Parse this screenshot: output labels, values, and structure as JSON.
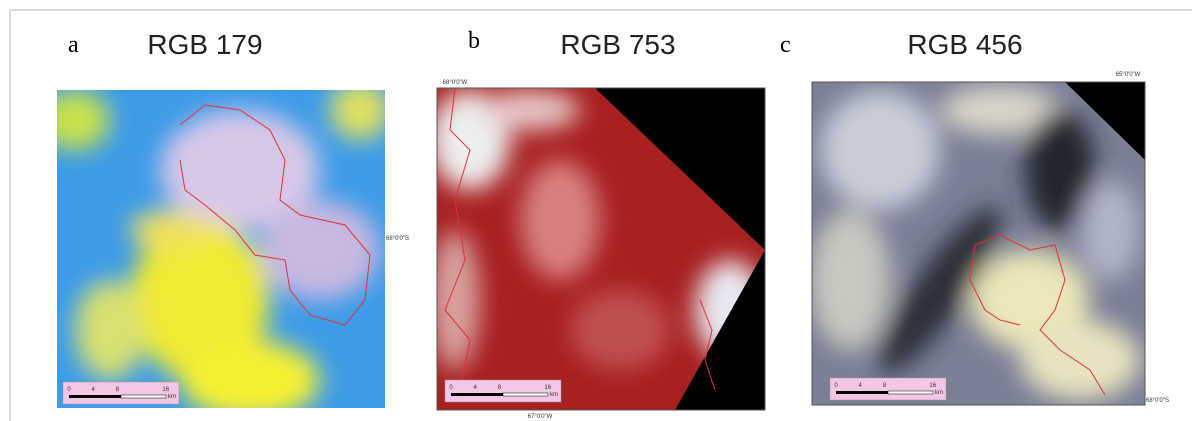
{
  "panels": [
    {
      "label": "a",
      "title": "RGB 179",
      "scale": {
        "ticks": [
          "0",
          "4",
          "8",
          "16"
        ],
        "unit": "km"
      },
      "coords": [
        "68°0'0\"S"
      ]
    },
    {
      "label": "b",
      "title": "RGB 753",
      "scale": {
        "ticks": [
          "0",
          "4",
          "8",
          "16"
        ],
        "unit": "km"
      },
      "coords": [
        "68°0'0\"W",
        "67°0'0\"W"
      ]
    },
    {
      "label": "c",
      "title": "RGB 456",
      "scale": {
        "ticks": [
          "0",
          "4",
          "8",
          "16"
        ],
        "unit": "km"
      },
      "coords": [
        "65°0'0\"W",
        "68°0'0\"S"
      ]
    }
  ]
}
